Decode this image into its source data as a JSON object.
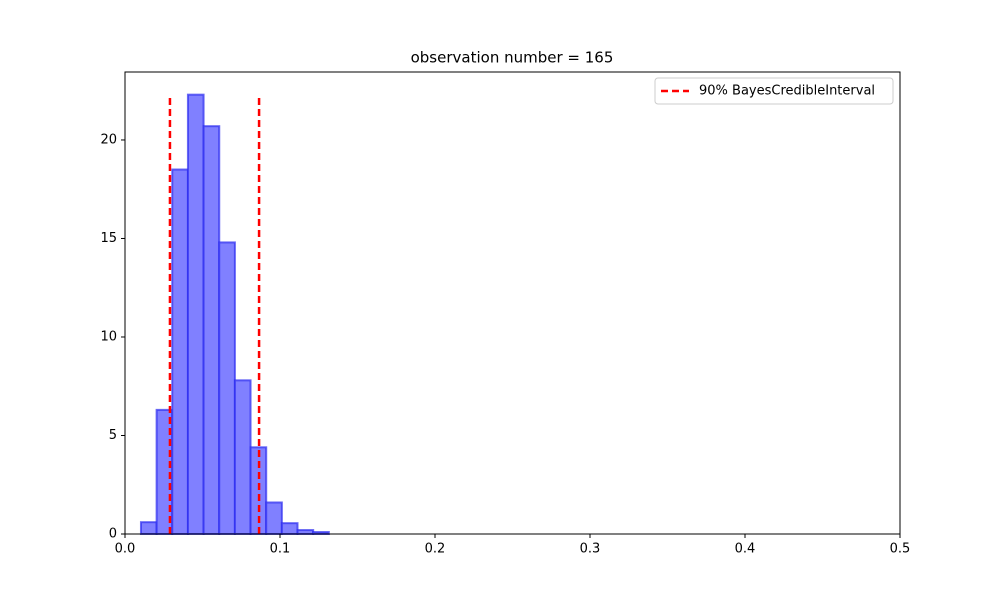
{
  "chart_data": {
    "type": "histogram",
    "title": "observation number = 165",
    "bins": [
      0.0103,
      0.0204,
      0.0305,
      0.0406,
      0.0507,
      0.0608,
      0.0709,
      0.081,
      0.0911,
      0.1012,
      0.1113,
      0.1214,
      0.1315
    ],
    "values": [
      0.6,
      6.3,
      18.5,
      22.3,
      20.7,
      14.8,
      7.8,
      4.4,
      1.6,
      0.55,
      0.2,
      0.1
    ],
    "color": "#8080ff",
    "edge_color": "#2b2bf0",
    "credible_interval": {
      "name": "90% BayesCredibleInterval",
      "color": "#ff0000",
      "x": [
        0.029,
        0.0865
      ],
      "ymax": 22.2
    },
    "xlim": [
      0,
      0.5
    ],
    "xticks": [
      {
        "value": 0,
        "label": "0.0"
      },
      0.1,
      0.2,
      0.3,
      0.4,
      0.5
    ],
    "ylim": [
      0,
      23.45
    ],
    "yticks": [
      0,
      5,
      10,
      15,
      20
    ],
    "legend": "upper right",
    "grid": false
  }
}
